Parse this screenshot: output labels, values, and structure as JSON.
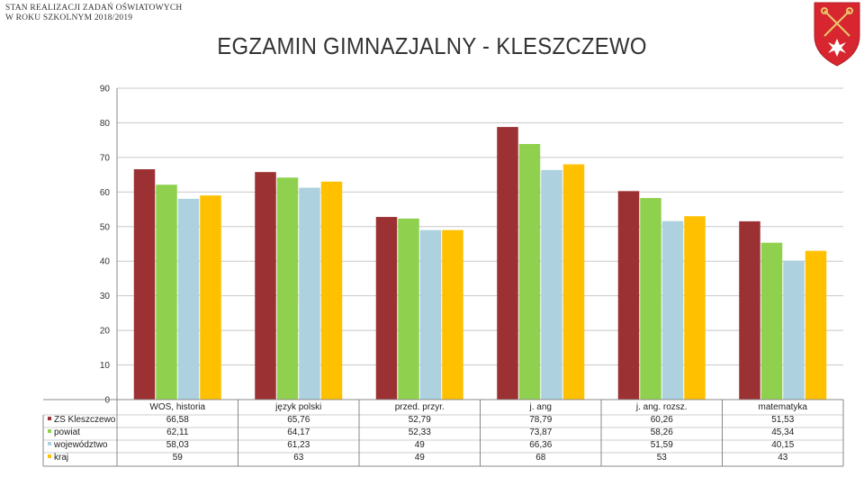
{
  "header": {
    "org_line1": "STAN REALIZACJI ZADAŃ OŚWIATOWYCH",
    "org_line2": "W ROKU SZKOLNYM 2018/2019",
    "title": "EGZAMIN GIMNAZJALNY - KLESZCZEWO"
  },
  "colors": {
    "ZS Kleszczewo": "#9B3133",
    "powiat": "#8FD14F",
    "województwo": "#ADD1DE",
    "kraj": "#FFC000",
    "coat_red": "#D7262F",
    "coat_gold": "#E8C66A"
  },
  "chart_data": {
    "type": "bar",
    "categories": [
      "WOS, historia",
      "język polski",
      "przed. przyr.",
      "j. ang",
      "j. ang. rozsz.",
      "matematyka"
    ],
    "series": [
      {
        "name": "ZS Kleszczewo",
        "values": [
          66.58,
          65.76,
          52.79,
          78.79,
          60.26,
          51.53
        ],
        "labels": [
          "66,58",
          "65,76",
          "52,79",
          "78,79",
          "60,26",
          "51,53"
        ]
      },
      {
        "name": "powiat",
        "values": [
          62.11,
          64.17,
          52.33,
          73.87,
          58.26,
          45.34
        ],
        "labels": [
          "62,11",
          "64,17",
          "52,33",
          "73,87",
          "58,26",
          "45,34"
        ]
      },
      {
        "name": "województwo",
        "values": [
          58.03,
          61.23,
          49,
          66.36,
          51.59,
          40.15
        ],
        "labels": [
          "58,03",
          "61,23",
          "49",
          "66,36",
          "51,59",
          "40,15"
        ]
      },
      {
        "name": "kraj",
        "values": [
          59,
          63,
          49,
          68,
          53,
          43
        ],
        "labels": [
          "59",
          "63",
          "49",
          "68",
          "53",
          "43"
        ]
      }
    ],
    "ylim": [
      0,
      90
    ],
    "yticks": [
      0,
      10,
      20,
      30,
      40,
      50,
      60,
      70,
      80,
      90
    ],
    "grid": true,
    "legend": "data table (left)",
    "title": "EGZAMIN GIMNAZJALNY - KLESZCZEWO"
  }
}
